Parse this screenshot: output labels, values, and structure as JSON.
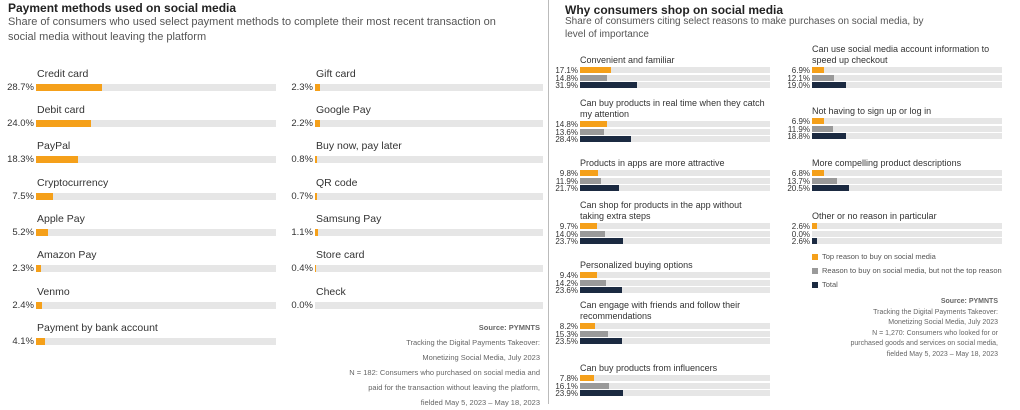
{
  "left": {
    "title": "Payment methods used on social media",
    "subtitle": "Share of consumers who used select payment methods to complete their most recent transaction on social media without leaving the platform",
    "source": {
      "label": "Source: PYMNTS",
      "lines": [
        "Tracking the Digital Payments Takeover:",
        "Monetizing Social Media, July 2023",
        "N = 182: Consumers who purchased on social media and",
        "paid for the transaction without leaving the platform,",
        "fielded May 5, 2023 – May 18, 2023"
      ]
    }
  },
  "right": {
    "title": "Why consumers shop on social media",
    "subtitle": "Share of consumers citing select reasons to make purchases on social media, by level of importance",
    "legend": [
      {
        "label": "Top reason to buy on social media",
        "color": "#f5a01a"
      },
      {
        "label": "Reason to buy on social media, but not the top reason",
        "color": "#9a9a9a"
      },
      {
        "label": "Total",
        "color": "#1b2a41"
      }
    ],
    "source": {
      "label": "Source: PYMNTS",
      "lines": [
        "Tracking the Digital Payments Takeover:",
        "Monetizing Social Media, July 2023",
        "N = 1,270: Consumers who looked for or",
        "purchased goods and services on social media,",
        "fielded May 5, 2023 – May 18, 2023"
      ]
    }
  },
  "chart_data": [
    {
      "type": "bar",
      "title": "Payment methods used on social media",
      "unit": "%",
      "xlim": [
        0,
        100
      ],
      "categories": [
        "Credit card",
        "Debit card",
        "PayPal",
        "Cryptocurrency",
        "Apple Pay",
        "Amazon Pay",
        "Venmo",
        "Payment by bank account",
        "Gift card",
        "Google Pay",
        "Buy now, pay later",
        "QR code",
        "Samsung Pay",
        "Store card",
        "Check"
      ],
      "labels": [
        "28.7%",
        "24.0%",
        "18.3%",
        "7.5%",
        "5.2%",
        "2.3%",
        "2.4%",
        "4.1%",
        "2.3%",
        "2.2%",
        "0.8%",
        "0.7%",
        "1.1%",
        "0.4%",
        "0.0%"
      ],
      "values": [
        28.7,
        24.0,
        18.3,
        7.5,
        5.2,
        2.3,
        2.4,
        4.1,
        2.3,
        2.2,
        0.8,
        0.7,
        1.1,
        0.4,
        0.0
      ],
      "color": "#f5a01a"
    },
    {
      "type": "bar",
      "title": "Why consumers shop on social media",
      "unit": "%",
      "xlim": [
        0,
        100
      ],
      "categories": [
        "Convenient and familiar",
        "Can buy products in real time when they catch my attention",
        "Products in apps are more attractive",
        "Can shop for products in the app without taking extra steps",
        "Personalized buying options",
        "Can engage with friends and follow their recommendations",
        "Can buy products from influencers",
        "Can use social media account information to speed up checkout",
        "Not having to sign up or log in",
        "More compelling product descriptions",
        "Other or no reason in particular"
      ],
      "series": [
        {
          "name": "Top reason to buy on social media",
          "color": "#f5a01a",
          "values": [
            17.1,
            14.8,
            9.8,
            9.7,
            9.4,
            8.2,
            7.8,
            6.9,
            6.9,
            6.8,
            2.6
          ],
          "labels": [
            "17.1%",
            "14.8%",
            "9.8%",
            "9.7%",
            "9.4%",
            "8.2%",
            "7.8%",
            "6.9%",
            "6.9%",
            "6.8%",
            "2.6%"
          ]
        },
        {
          "name": "Reason to buy on social media, but not the top reason",
          "color": "#9a9a9a",
          "values": [
            14.8,
            13.6,
            11.9,
            14.0,
            14.2,
            15.3,
            16.1,
            12.1,
            11.9,
            13.7,
            0.0
          ],
          "labels": [
            "14.8%",
            "13.6%",
            "11.9%",
            "14.0%",
            "14.2%",
            "15.3%",
            "16.1%",
            "12.1%",
            "11.9%",
            "13.7%",
            "0.0%"
          ]
        },
        {
          "name": "Total",
          "color": "#1b2a41",
          "values": [
            31.9,
            28.4,
            21.7,
            23.7,
            23.6,
            23.5,
            23.9,
            19.0,
            18.8,
            20.5,
            2.6
          ],
          "labels": [
            "31.9%",
            "28.4%",
            "21.7%",
            "23.7%",
            "23.6%",
            "23.5%",
            "23.9%",
            "19.0%",
            "18.8%",
            "20.5%",
            "2.6%"
          ]
        }
      ]
    }
  ]
}
